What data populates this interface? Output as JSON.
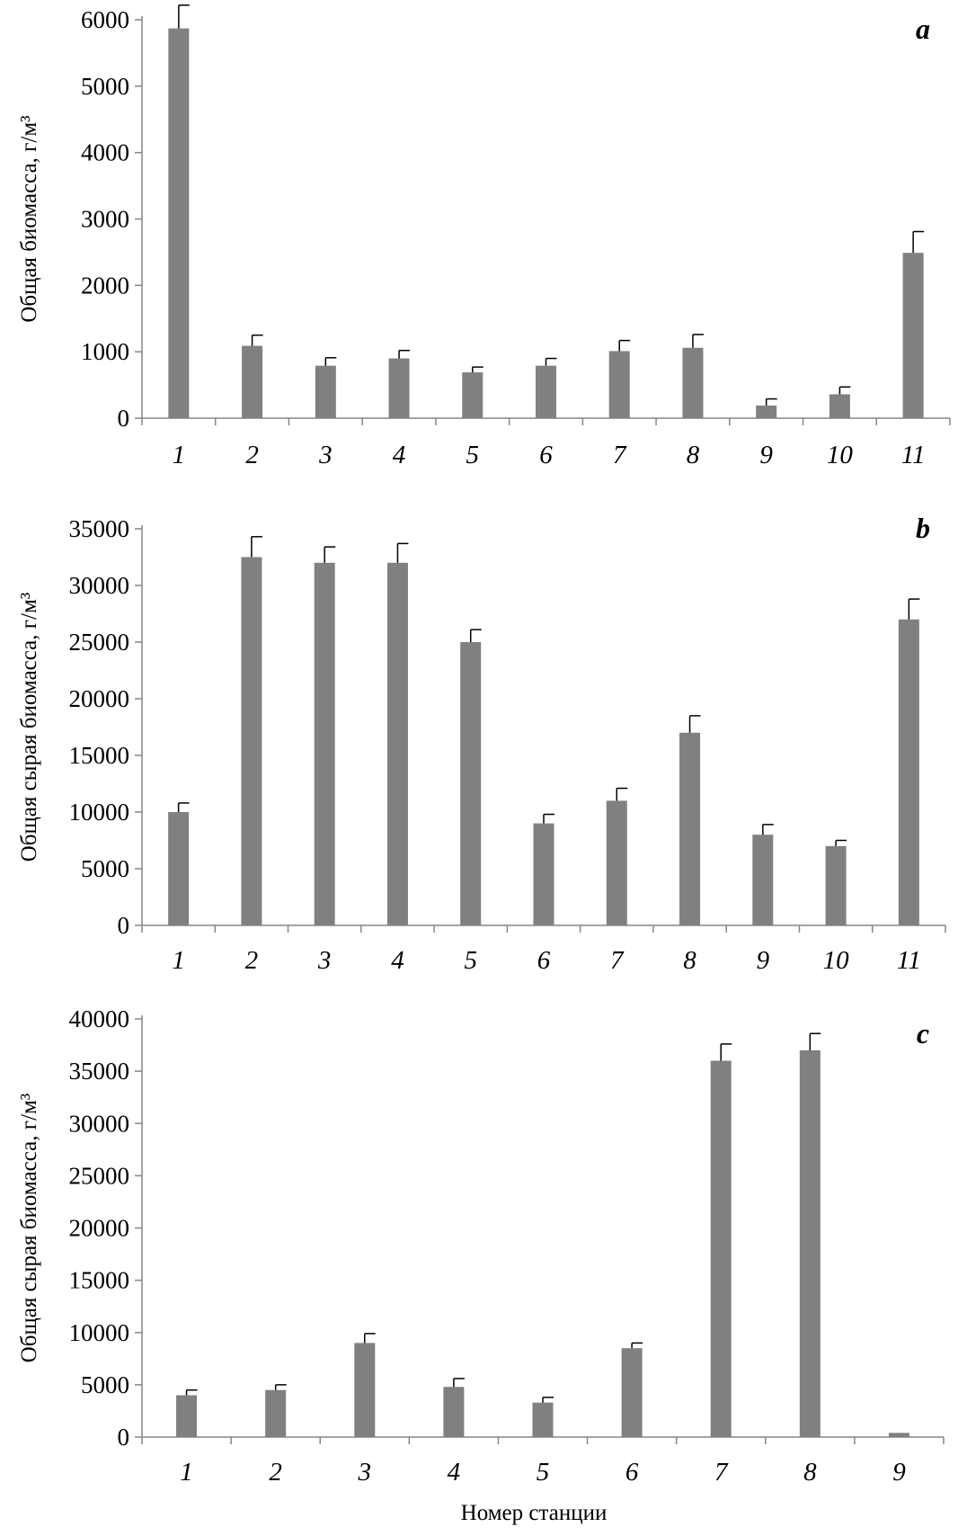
{
  "figure": {
    "xlabel": "Номер станции"
  },
  "chart_data": [
    {
      "type": "bar",
      "panel_label": "a",
      "categories": [
        "1",
        "2",
        "3",
        "4",
        "5",
        "6",
        "7",
        "8",
        "9",
        "10",
        "11"
      ],
      "values": [
        5870,
        1090,
        790,
        900,
        690,
        790,
        1010,
        1060,
        190,
        360,
        2490
      ],
      "errors": [
        350,
        160,
        120,
        120,
        80,
        110,
        160,
        200,
        100,
        110,
        320
      ],
      "ylabel": "Общая биомасса, г/м³",
      "xlabel": "",
      "ylim": [
        0,
        6000
      ],
      "yticks": [
        "0",
        "1000",
        "2000",
        "3000",
        "4000",
        "5000",
        "6000"
      ],
      "color": "#808080",
      "grid": false,
      "legend": "none"
    },
    {
      "type": "bar",
      "panel_label": "b",
      "categories": [
        "1",
        "2",
        "3",
        "4",
        "5",
        "6",
        "7",
        "8",
        "9",
        "10",
        "11"
      ],
      "values": [
        10000,
        32500,
        32000,
        32000,
        25000,
        9000,
        11000,
        17000,
        8000,
        7000,
        27000
      ],
      "errors": [
        800,
        1800,
        1400,
        1700,
        1100,
        800,
        1100,
        1500,
        900,
        500,
        1800
      ],
      "ylabel": "Общая сырая биомасса, г/м³",
      "xlabel": "",
      "ylim": [
        0,
        35000
      ],
      "yticks": [
        "0",
        "5000",
        "10000",
        "15000",
        "20000",
        "25000",
        "30000",
        "35000"
      ],
      "color": "#808080",
      "grid": false,
      "legend": "none"
    },
    {
      "type": "bar",
      "panel_label": "c",
      "categories": [
        "1",
        "2",
        "3",
        "4",
        "5",
        "6",
        "7",
        "8",
        "9"
      ],
      "values": [
        4000,
        4500,
        9000,
        4800,
        3300,
        8500,
        36000,
        37000,
        400
      ],
      "errors": [
        500,
        500,
        900,
        800,
        500,
        500,
        1600,
        1600,
        0
      ],
      "ylabel": "Общая сырая биомасса, г/м³",
      "xlabel": "Номер станции",
      "ylim": [
        0,
        40000
      ],
      "yticks": [
        "0",
        "5000",
        "10000",
        "15000",
        "20000",
        "25000",
        "30000",
        "35000",
        "40000"
      ],
      "color": "#808080",
      "grid": false,
      "legend": "none"
    }
  ]
}
